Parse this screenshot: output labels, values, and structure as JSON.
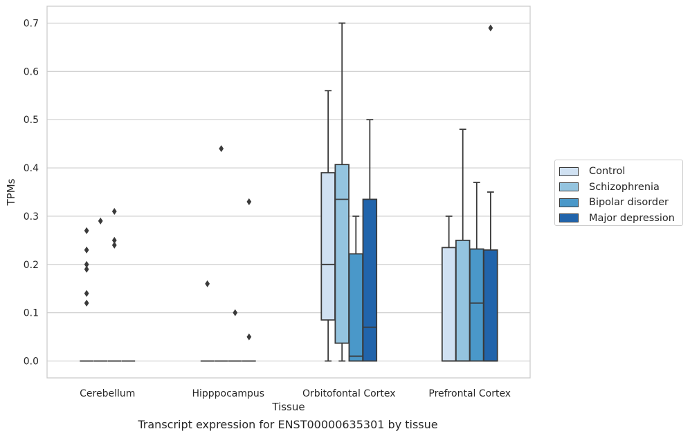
{
  "chart_data": {
    "type": "box",
    "title": "Transcript expression for ENST00000635301 by tissue",
    "xlabel": "Tissue",
    "ylabel": "TPMs",
    "ylim": [
      -0.035,
      0.735
    ],
    "yticks": [
      "0.0",
      "0.1",
      "0.2",
      "0.3",
      "0.4",
      "0.5",
      "0.6",
      "0.7"
    ],
    "grid": true,
    "legend_position": "outside-right",
    "categories": [
      "Cerebellum",
      "Hipppocampus",
      "Orbitofontal Cortex",
      "Prefrontal Cortex"
    ],
    "series": [
      {
        "name": "Control",
        "color": "#d0e1f2",
        "boxes": [
          {
            "min": 0,
            "q1": 0,
            "median": 0,
            "q3": 0,
            "max": 0,
            "outliers": [
              0.27,
              0.23,
              0.2,
              0.19,
              0.14,
              0.12
            ]
          },
          {
            "min": 0,
            "q1": 0,
            "median": 0,
            "q3": 0,
            "max": 0,
            "outliers": [
              0.16
            ]
          },
          {
            "min": 0,
            "q1": 0.085,
            "median": 0.2,
            "q3": 0.39,
            "max": 0.56,
            "outliers": []
          },
          {
            "min": 0,
            "q1": 0,
            "median": 0,
            "q3": 0.235,
            "max": 0.3,
            "outliers": []
          }
        ]
      },
      {
        "name": "Schizophrenia",
        "color": "#94c4df",
        "boxes": [
          {
            "min": 0,
            "q1": 0,
            "median": 0,
            "q3": 0,
            "max": 0,
            "outliers": [
              0.29
            ]
          },
          {
            "min": 0,
            "q1": 0,
            "median": 0,
            "q3": 0,
            "max": 0,
            "outliers": [
              0.44
            ]
          },
          {
            "min": 0,
            "q1": 0.037,
            "median": 0.335,
            "q3": 0.407,
            "max": 0.7,
            "outliers": []
          },
          {
            "min": 0,
            "q1": 0,
            "median": 0,
            "q3": 0.25,
            "max": 0.48,
            "outliers": []
          }
        ]
      },
      {
        "name": "Bipolar disorder",
        "color": "#4a98c9",
        "boxes": [
          {
            "min": 0,
            "q1": 0,
            "median": 0,
            "q3": 0,
            "max": 0,
            "outliers": [
              0.31,
              0.25,
              0.24
            ]
          },
          {
            "min": 0,
            "q1": 0,
            "median": 0,
            "q3": 0,
            "max": 0,
            "outliers": [
              0.1
            ]
          },
          {
            "min": 0,
            "q1": 0,
            "median": 0.01,
            "q3": 0.222,
            "max": 0.3,
            "outliers": []
          },
          {
            "min": 0,
            "q1": 0,
            "median": 0.12,
            "q3": 0.232,
            "max": 0.37,
            "outliers": []
          }
        ]
      },
      {
        "name": "Major depression",
        "color": "#2164ab",
        "boxes": [
          {
            "min": 0,
            "q1": 0,
            "median": 0,
            "q3": 0,
            "max": 0,
            "outliers": []
          },
          {
            "min": 0,
            "q1": 0,
            "median": 0,
            "q3": 0,
            "max": 0,
            "outliers": [
              0.33,
              0.05
            ]
          },
          {
            "min": 0,
            "q1": 0,
            "median": 0.07,
            "q3": 0.335,
            "max": 0.5,
            "outliers": []
          },
          {
            "min": 0,
            "q1": 0,
            "median": 0,
            "q3": 0.23,
            "max": 0.35,
            "outliers": [
              0.69
            ]
          }
        ]
      }
    ]
  }
}
